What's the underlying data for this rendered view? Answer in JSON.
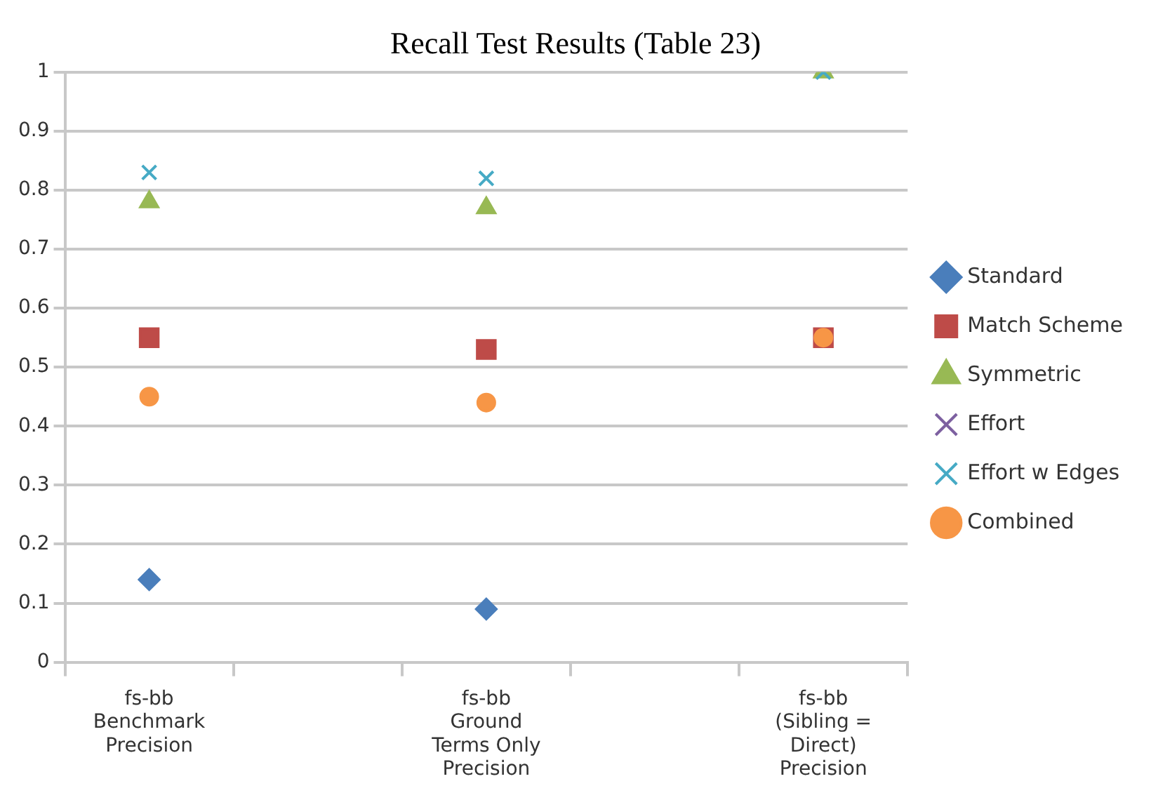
{
  "chart_data": {
    "type": "scatter",
    "title": "Recall Test Results (Table 23)",
    "categories": [
      "fs-bb\nBenchmark\nPrecision",
      null,
      "fs-bb\nGround\nTerms Only\nPrecision",
      null,
      "fs-bb\n(Sibling =\nDirect)\nPrecision"
    ],
    "series": [
      {
        "name": "Standard",
        "color": "#4a7ebb",
        "marker": "diamond",
        "values": [
          0.14,
          null,
          0.09,
          null,
          null
        ]
      },
      {
        "name": "Match Scheme",
        "color": "#be4b48",
        "marker": "square",
        "values": [
          0.55,
          null,
          0.53,
          null,
          0.55
        ]
      },
      {
        "name": "Symmetric",
        "color": "#98b954",
        "marker": "triangle",
        "values": [
          0.78,
          null,
          0.77,
          null,
          1
        ]
      },
      {
        "name": "Effort",
        "color": "#7d60a0",
        "marker": "cross",
        "values": [
          null,
          null,
          null,
          null,
          null
        ]
      },
      {
        "name": "Effort w Edges",
        "color": "#46aac5",
        "marker": "cross",
        "values": [
          0.83,
          null,
          0.82,
          null,
          1
        ]
      },
      {
        "name": "Combined",
        "color": "#f79646",
        "marker": "circle",
        "values": [
          0.45,
          null,
          0.44,
          null,
          0.55
        ]
      }
    ],
    "ylim": [
      0,
      1
    ],
    "yticks": [
      0,
      0.1,
      0.2,
      0.3,
      0.4,
      0.5,
      0.6,
      0.7,
      0.8,
      0.9,
      1
    ],
    "grid": "y",
    "legend": "right"
  }
}
